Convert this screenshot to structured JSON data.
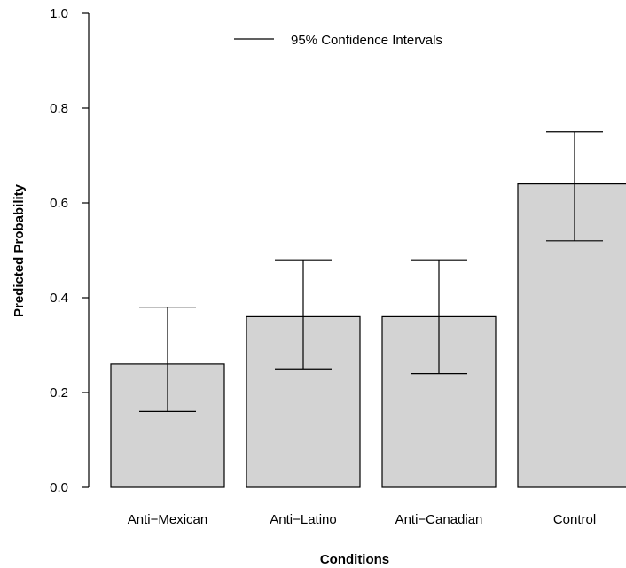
{
  "chart_data": {
    "type": "bar",
    "title": "",
    "xlabel": "Conditions",
    "ylabel": "Predicted Probability",
    "categories": [
      "Anti−Mexican",
      "Anti−Latino",
      "Anti−Canadian",
      "Control"
    ],
    "values": [
      0.26,
      0.36,
      0.36,
      0.64
    ],
    "ci_lower": [
      0.16,
      0.25,
      0.24,
      0.52
    ],
    "ci_upper": [
      0.38,
      0.48,
      0.48,
      0.75
    ],
    "ylim": [
      0,
      1
    ],
    "yticks": [
      0.0,
      0.2,
      0.4,
      0.6,
      0.8,
      1.0
    ],
    "ytick_labels": [
      "0.0",
      "0.2",
      "0.4",
      "0.6",
      "0.8",
      "1.0"
    ],
    "legend": {
      "label": "95% Confidence Intervals",
      "placement": "top-center"
    },
    "grid": false,
    "bar_color": "#d3d3d3",
    "edge_color": "#000000"
  }
}
